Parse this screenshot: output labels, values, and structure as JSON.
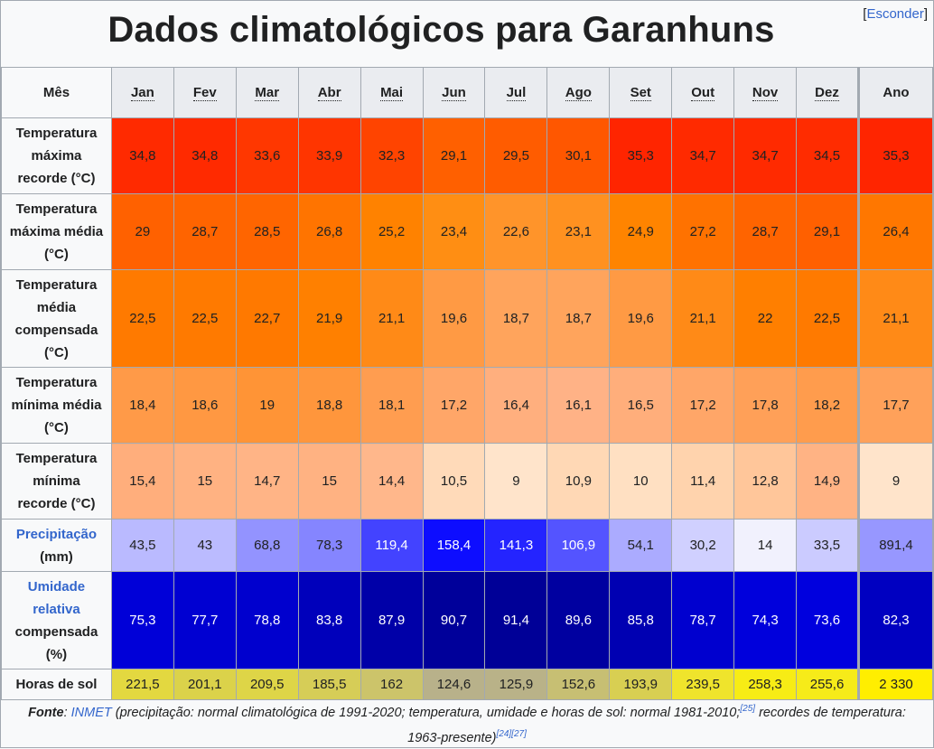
{
  "title": "Dados climatológicos para Garanhuns",
  "hide_link": {
    "open": "[",
    "label": "Esconder",
    "close": "]"
  },
  "header": {
    "corner": "Mês",
    "months": [
      "Jan",
      "Fev",
      "Mar",
      "Abr",
      "Mai",
      "Jun",
      "Jul",
      "Ago",
      "Set",
      "Out",
      "Nov",
      "Dez"
    ],
    "annual": "Ano"
  },
  "rows": [
    {
      "label": [
        "Temperatura",
        "máxima",
        "recorde (°C)"
      ],
      "values": [
        "34,8",
        "34,8",
        "33,6",
        "33,9",
        "32,3",
        "29,1",
        "29,5",
        "30,1",
        "35,3",
        "34,7",
        "34,7",
        "34,5",
        "35,3"
      ],
      "colors": [
        "#ff2a00",
        "#ff2a00",
        "#ff3700",
        "#ff3500",
        "#ff4400",
        "#ff6000",
        "#ff5c00",
        "#ff5700",
        "#ff2500",
        "#ff2a00",
        "#ff2a00",
        "#ff2c00",
        "#ff2500"
      ]
    },
    {
      "label": [
        "Temperatura",
        "máxima média",
        "(°C)"
      ],
      "values": [
        "29",
        "28,7",
        "28,5",
        "26,8",
        "25,2",
        "23,4",
        "22,6",
        "23,1",
        "24,9",
        "27,2",
        "28,7",
        "29,1",
        "26,4"
      ],
      "colors": [
        "#ff6100",
        "#ff6400",
        "#ff6500",
        "#ff7400",
        "#ff8200",
        "#ff8e13",
        "#ff942a",
        "#ff9120",
        "#ff8400",
        "#ff7200",
        "#ff6400",
        "#ff6000",
        "#ff7700"
      ]
    },
    {
      "label": [
        "Temperatura",
        "média",
        "compensada",
        "(°C)"
      ],
      "values": [
        "22,5",
        "22,5",
        "22,7",
        "21,9",
        "21,1",
        "19,6",
        "18,7",
        "18,7",
        "19,6",
        "21,1",
        "22",
        "22,5",
        "21,1"
      ],
      "colors": [
        "#ff7a00",
        "#ff7a00",
        "#ff7900",
        "#ff8000",
        "#ff8a17",
        "#ff9a44",
        "#ffa45c",
        "#ffa45c",
        "#ff9a44",
        "#ff8a17",
        "#ff7f00",
        "#ff7a00",
        "#ff8a17"
      ]
    },
    {
      "label": [
        "Temperatura",
        "mínima média",
        "(°C)"
      ],
      "values": [
        "18,4",
        "18,6",
        "19",
        "18,8",
        "18,1",
        "17,2",
        "16,4",
        "16,1",
        "16,5",
        "17,2",
        "17,8",
        "18,2",
        "17,7"
      ],
      "colors": [
        "#ff9a48",
        "#ff9842",
        "#ff9436",
        "#ff963c",
        "#ff9d50",
        "#ffa668",
        "#ffaf7e",
        "#ffb286",
        "#ffae7b",
        "#ffa668",
        "#ffa058",
        "#ff9c4d",
        "#ffa15a"
      ]
    },
    {
      "label": [
        "Temperatura",
        "mínima",
        "recorde (°C)"
      ],
      "values": [
        "15,4",
        "15",
        "14,7",
        "15",
        "14,4",
        "10,5",
        "9",
        "10,9",
        "10",
        "11,4",
        "12,8",
        "14,9",
        "9"
      ],
      "colors": [
        "#ffae7c",
        "#ffb282",
        "#ffb486",
        "#ffb282",
        "#ffb78b",
        "#ffdab9",
        "#ffe4cb",
        "#ffd8b5",
        "#ffe0c2",
        "#ffd3ad",
        "#ffc69a",
        "#ffb384",
        "#ffe4cb"
      ]
    },
    {
      "label": [
        "Precipitação",
        "(mm)"
      ],
      "label_blue": [
        true,
        false
      ],
      "values": [
        "43,5",
        "43",
        "68,8",
        "78,3",
        "119,4",
        "158,4",
        "141,3",
        "106,9",
        "54,1",
        "30,2",
        "14",
        "33,5",
        "891,4"
      ],
      "colors": [
        "#babaff",
        "#bbbbff",
        "#9393ff",
        "#8585ff",
        "#4343ff",
        "#0d0dff",
        "#2424ff",
        "#5454ff",
        "#ababff",
        "#d0d0ff",
        "#f1f1fd",
        "#cbcbff",
        "#9797ff"
      ],
      "white": [
        false,
        false,
        false,
        false,
        true,
        true,
        true,
        true,
        false,
        false,
        false,
        false,
        false
      ]
    },
    {
      "label": [
        "Umidade",
        "relativa",
        "compensada",
        "(%)"
      ],
      "label_blue": [
        true,
        true,
        false,
        false
      ],
      "values": [
        "75,3",
        "77,7",
        "78,8",
        "83,8",
        "87,9",
        "90,7",
        "91,4",
        "89,6",
        "85,8",
        "78,7",
        "74,3",
        "73,6",
        "82,3"
      ],
      "colors": [
        "#0000d8",
        "#0000d2",
        "#0000ce",
        "#0000bb",
        "#0000a8",
        "#00009a",
        "#000097",
        "#0000a0",
        "#0000b2",
        "#0000cf",
        "#0000dc",
        "#0000de",
        "#0000c1"
      ],
      "white": [
        true,
        true,
        true,
        true,
        true,
        true,
        true,
        true,
        true,
        true,
        true,
        true,
        true
      ]
    },
    {
      "label": [
        "Horas de sol"
      ],
      "values": [
        "221,5",
        "201,1",
        "209,5",
        "185,5",
        "162",
        "124,6",
        "125,9",
        "152,6",
        "193,9",
        "239,5",
        "258,3",
        "255,6",
        "2 330"
      ],
      "colors": [
        "#e3d840",
        "#dbd24a",
        "#ded547",
        "#d6cd57",
        "#ccc46a",
        "#b8b18a",
        "#b9b288",
        "#c7bf73",
        "#d8cf52",
        "#efe42c",
        "#f7ec15",
        "#f6eb19",
        "#ffee00"
      ]
    }
  ],
  "footer": {
    "lead": "Fonte",
    "colon": ": ",
    "link": "INMET",
    "text1": " (precipitação: normal climatológica de 1991-2020; temperatura, umidade e horas de sol: normal 1981-2010;",
    "ref1": "[25]",
    "text2": " recordes de temperatura:",
    "text3": "1963-presente)",
    "ref2": "[24]",
    "ref3": "[27]"
  }
}
